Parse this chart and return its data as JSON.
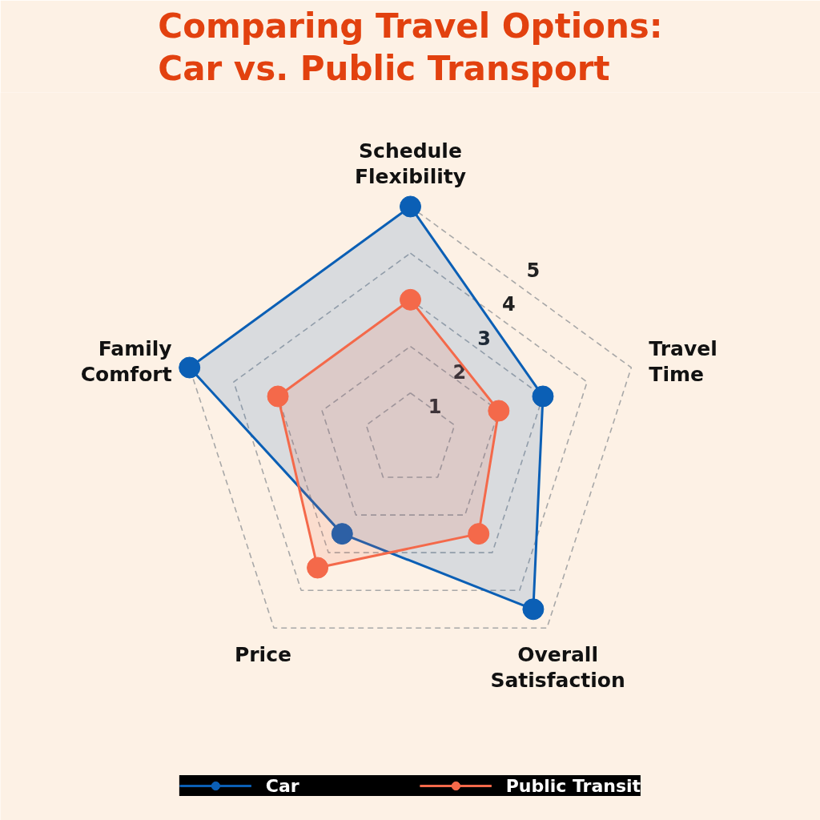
{
  "chart_data": {
    "type": "radar",
    "title": "Comparing Travel Options:\nCar vs. Public Transport",
    "categories": [
      "Schedule Flexibility",
      "Travel Time",
      "Overall Satisfaction",
      "Price",
      "Family Comfort"
    ],
    "series": [
      {
        "name": "Car",
        "color": "#0b5fb5",
        "values": [
          5,
          3,
          4.5,
          2.5,
          5
        ]
      },
      {
        "name": "Public Transit",
        "color": "#f4694a",
        "values": [
          3,
          2,
          2.5,
          3.4,
          3
        ]
      }
    ],
    "ylim": [
      0,
      5
    ],
    "yticks": [
      1,
      2,
      3,
      4,
      5
    ],
    "grid": true,
    "legend": "bottom",
    "marker": "circle",
    "line_style": "solid"
  }
}
